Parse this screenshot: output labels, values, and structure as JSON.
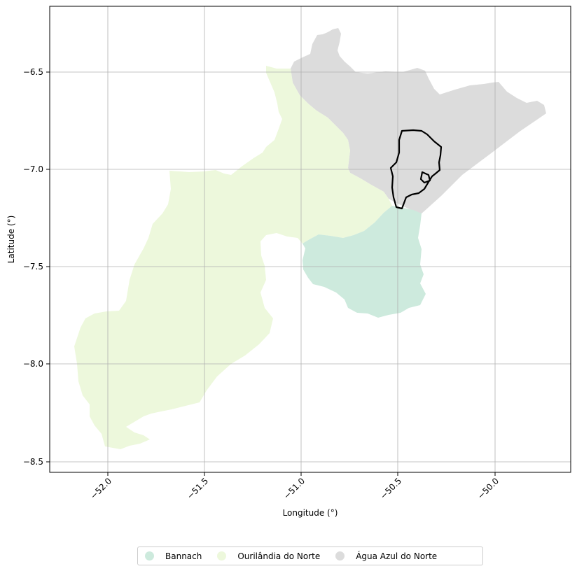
{
  "chart_data": {
    "type": "map",
    "title": "",
    "xlabel": "Longitude (°)",
    "ylabel": "Latitude (°)",
    "xlim": [
      -52.3,
      -49.7
    ],
    "ylim": [
      -8.55,
      -6.25
    ],
    "x_ticks": [
      -52.0,
      -51.5,
      -51.0,
      -50.5,
      -50.0
    ],
    "x_tick_labels": [
      "−52.0",
      "−51.5",
      "−51.0",
      "−50.5",
      "−50.0"
    ],
    "y_ticks": [
      -6.5,
      -7.0,
      -7.5,
      -8.0,
      -8.5
    ],
    "y_tick_labels": [
      "−6.5",
      "−7.0",
      "−7.5",
      "−8.0",
      "−8.5"
    ],
    "grid": true,
    "legend_position": "bottom-center",
    "regions": [
      {
        "name": "Bannach",
        "color": "#cdeadd"
      },
      {
        "name": "Ourilândia do Norte",
        "color": "#edf8dc"
      },
      {
        "name": "Água Azul do Norte",
        "color": "#dcdcdc"
      }
    ],
    "highlight_outline": {
      "color": "#000000",
      "description": "bold black outline of a sub-area inside Água Azul do Norte"
    }
  }
}
